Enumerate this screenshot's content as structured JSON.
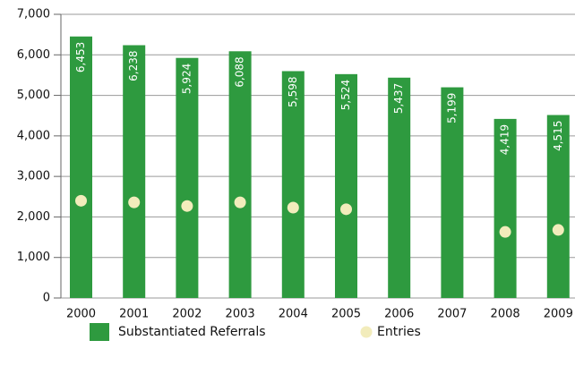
{
  "chart_data": {
    "type": "bar",
    "categories": [
      "2000",
      "2001",
      "2002",
      "2003",
      "2004",
      "2005",
      "2006",
      "2007",
      "2008",
      "2009"
    ],
    "series": [
      {
        "name": "Substantiated Referrals",
        "type": "bar",
        "color": "#2e9a3f",
        "values": [
          6453,
          6238,
          5924,
          6088,
          5598,
          5524,
          5437,
          5199,
          4419,
          4515
        ],
        "value_labels": [
          "6,453",
          "6,238",
          "5,924",
          "6,088",
          "5,598",
          "5,524",
          "5,437",
          "5,199",
          "4,419",
          "4,515"
        ]
      },
      {
        "name": "Entries",
        "type": "scatter",
        "color": "#f2ecbb",
        "values": [
          2400,
          2360,
          2270,
          2360,
          2230,
          2190,
          null,
          null,
          1630,
          1680
        ]
      }
    ],
    "ylim": [
      0,
      7000
    ],
    "yticks": [
      0,
      {
        "value": 1000,
        "label": "1,000"
      },
      {
        "value": 2000,
        "label": "2,000"
      },
      {
        "value": 3000,
        "label": "3,000"
      },
      {
        "value": 4000,
        "label": "4,000"
      },
      {
        "value": 5000,
        "label": "5,000"
      },
      {
        "value": 6000,
        "label": "6,000"
      },
      {
        "value": 7000,
        "label": "7,000"
      }
    ],
    "grid": true,
    "legend": "bottom"
  }
}
